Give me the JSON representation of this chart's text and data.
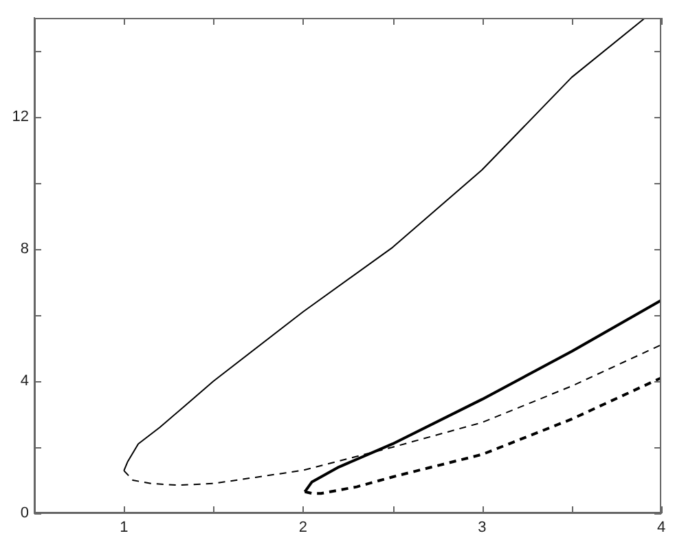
{
  "chart_data": {
    "type": "line",
    "xlim": [
      0.5,
      4
    ],
    "ylim": [
      0,
      15
    ],
    "xticks": [
      {
        "value": 0.5,
        "label": null
      },
      1,
      {
        "value": 1.5,
        "label": null
      },
      2,
      {
        "value": 2.5,
        "label": null
      },
      3,
      {
        "value": 3.5,
        "label": null
      },
      4
    ],
    "yticks": [
      0,
      {
        "value": 2,
        "label": null
      },
      4,
      {
        "value": 6,
        "label": null
      },
      8,
      {
        "value": 10,
        "label": null
      },
      12,
      {
        "value": 14,
        "label": null
      }
    ],
    "grid": false,
    "legend": false,
    "marker": "none",
    "series": [
      {
        "color": "#000000",
        "line_style": "solid",
        "x": [
          1,
          1.02,
          1.08,
          1.2,
          1.34,
          1.5,
          2,
          2.5,
          3,
          3.5,
          3.91
        ],
        "values": [
          1.29,
          1.55,
          2.1,
          2.6,
          3.25,
          4.0,
          6.1,
          8.05,
          10.4,
          13.2,
          15
        ]
      },
      {
        "color": "#000000",
        "line_style": "dashed",
        "x": [
          1,
          1.05,
          1.15,
          1.3,
          1.5,
          2,
          2.5,
          3,
          3.5,
          4
        ],
        "values": [
          1.29,
          1.0,
          0.9,
          0.85,
          0.9,
          1.3,
          2.0,
          2.75,
          3.85,
          5.1
        ]
      },
      {
        "color": "#000000",
        "line_style": "solid",
        "x": [
          2.01,
          2.05,
          2.2,
          2.5,
          3,
          3.5,
          4
        ],
        "values": [
          0.65,
          0.95,
          1.4,
          2.1,
          3.45,
          4.9,
          6.45
        ]
      },
      {
        "color": "#000000",
        "line_style": "dashed",
        "x": [
          2.01,
          2.05,
          2.1,
          2.3,
          2.5,
          3,
          3.5,
          4
        ],
        "values": [
          0.65,
          0.6,
          0.6,
          0.8,
          1.1,
          1.78,
          2.85,
          4.1
        ]
      }
    ]
  }
}
